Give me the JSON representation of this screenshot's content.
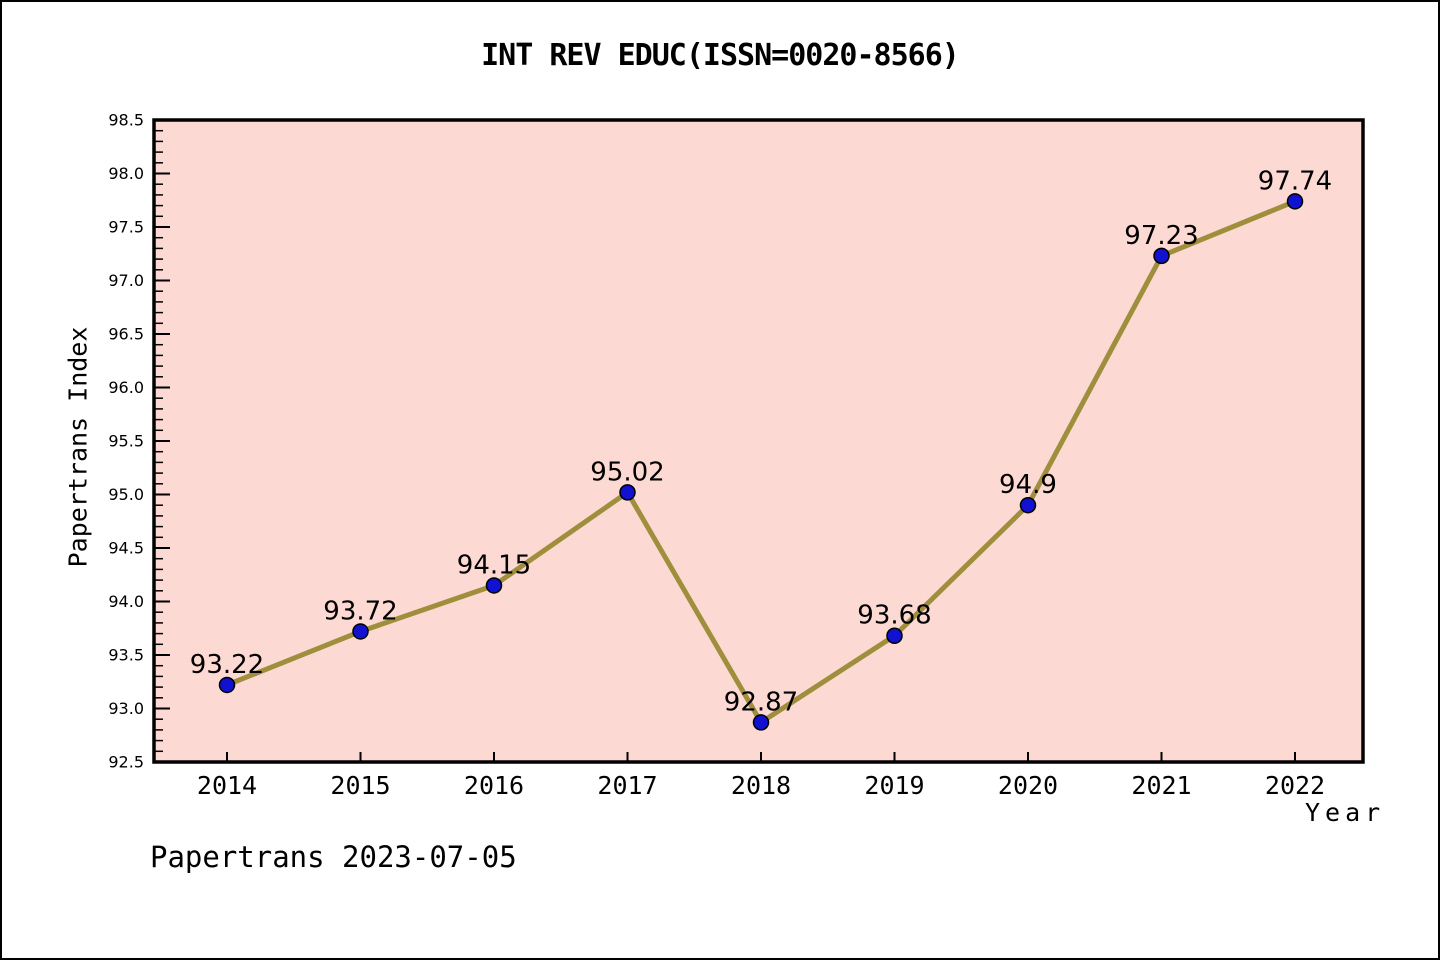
{
  "chart_data": {
    "type": "line",
    "title": "INT REV EDUC(ISSN=0020-8566)",
    "xlabel": "Year",
    "ylabel": "Papertrans Index",
    "categories": [
      "2014",
      "2015",
      "2016",
      "2017",
      "2018",
      "2019",
      "2020",
      "2021",
      "2022"
    ],
    "series": [
      {
        "name": "Papertrans Index",
        "values": [
          93.22,
          93.72,
          94.15,
          95.02,
          92.87,
          93.68,
          94.9,
          97.23,
          97.74
        ],
        "point_labels": [
          "93.22",
          "93.72",
          "94.15",
          "95.02",
          "92.87",
          "93.68",
          "94.9",
          "97.23",
          "97.74"
        ]
      }
    ],
    "ylim": [
      92.5,
      98.5
    ],
    "ytick_major_step": 0.5,
    "ytick_minor_step": 0.1,
    "grid": false,
    "legend_position": "none",
    "colors": {
      "plot_background": "#fcd9d3",
      "line": "#9f8f3d",
      "marker_fill": "#1111d2",
      "marker_edge": "#000000",
      "axis": "#000000",
      "text": "#000000"
    }
  },
  "footer": {
    "text": "Papertrans 2023-07-05"
  }
}
